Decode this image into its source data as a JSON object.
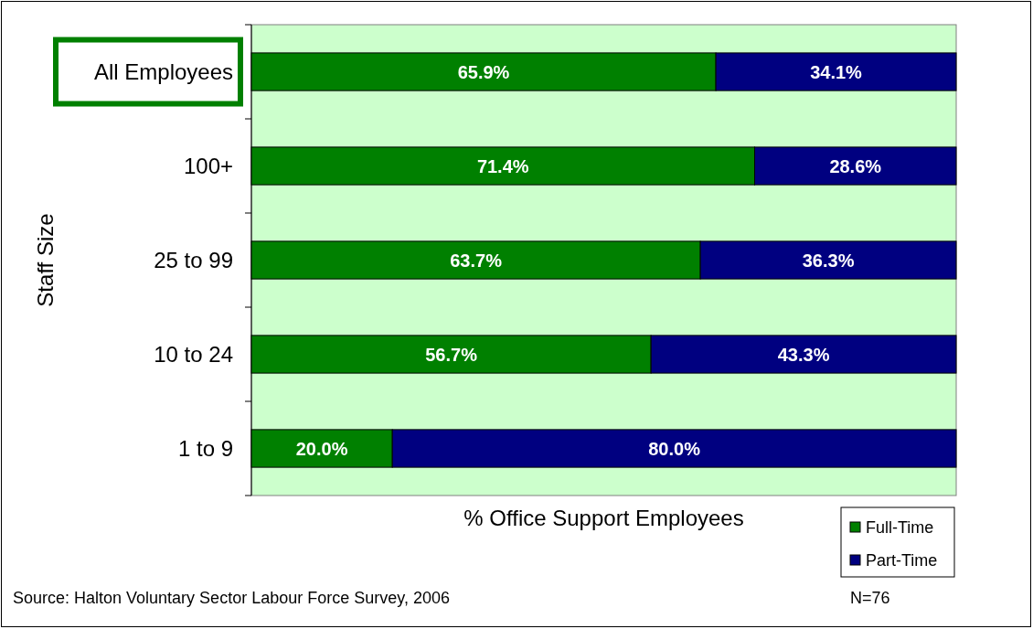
{
  "chart_data": {
    "type": "bar",
    "orientation": "horizontal",
    "stacked": true,
    "categories": [
      "All Employees",
      "100+",
      "25 to 99",
      "10 to 24",
      "1 to 9"
    ],
    "series": [
      {
        "name": "Full-Time",
        "color": "#008000",
        "values": [
          65.9,
          71.4,
          63.7,
          56.7,
          20.0
        ],
        "value_labels": [
          "65.9%",
          "71.4%",
          "63.7%",
          "56.7%",
          "20.0%"
        ]
      },
      {
        "name": "Part-Time",
        "color": "#000080",
        "values": [
          34.1,
          28.6,
          36.3,
          43.3,
          80.0
        ],
        "value_labels": [
          "34.1%",
          "28.6%",
          "36.3%",
          "43.3%",
          "80.0%"
        ]
      }
    ],
    "xlim": [
      0,
      100
    ],
    "tick_labels": "y",
    "xlabel": "% Office Support Employees",
    "ylabel": "Staff Size",
    "legend": "bottom right",
    "annotations": [
      "Source: Halton Voluntary Sector Labour Force Survey, 2006",
      "N=76"
    ]
  }
}
